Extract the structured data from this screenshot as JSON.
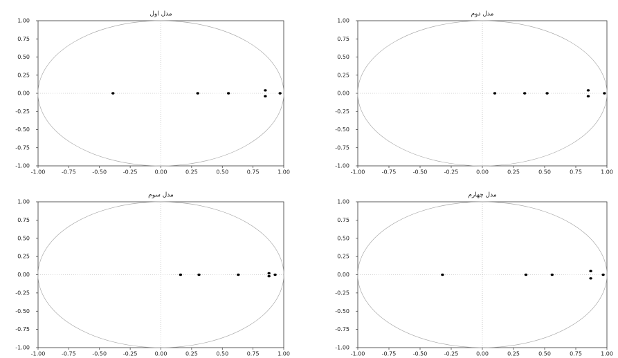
{
  "chart_data": [
    {
      "type": "scatter",
      "title": "مدل اول",
      "color": "#000000",
      "x": [
        -0.39,
        0.3,
        0.55,
        0.85,
        0.85,
        0.97
      ],
      "values": [
        0,
        0,
        0,
        0.04,
        -0.04,
        0
      ],
      "xlim": [
        -1,
        1
      ],
      "ylim": [
        -1,
        1
      ],
      "xticks": [
        {
          "value": -1,
          "label": "-1.00"
        },
        {
          "value": -0.75,
          "label": "-0.75"
        },
        {
          "value": -0.5,
          "label": "-0.50"
        },
        {
          "value": -0.25,
          "label": "-0.25"
        },
        {
          "value": 0,
          "label": "0.00"
        },
        {
          "value": 0.25,
          "label": "0.25"
        },
        {
          "value": 0.5,
          "label": "0.50"
        },
        {
          "value": 0.75,
          "label": "0.75"
        },
        {
          "value": 1,
          "label": "1.00"
        }
      ],
      "yticks": [
        {
          "value": 1,
          "label": "1.00"
        },
        {
          "value": 0.75,
          "label": "0.75"
        },
        {
          "value": 0.5,
          "label": "0.50"
        },
        {
          "value": 0.25,
          "label": "0.25"
        },
        {
          "value": 0,
          "label": "0.00"
        },
        {
          "value": -0.25,
          "label": "-0.25"
        },
        {
          "value": -0.5,
          "label": "-0.50"
        },
        {
          "value": -0.75,
          "label": "-0.75"
        },
        {
          "value": -1,
          "label": "-1.00"
        }
      ]
    },
    {
      "type": "scatter",
      "title": "مدل دوم",
      "color": "#000000",
      "x": [
        0.1,
        0.34,
        0.52,
        0.85,
        0.85,
        0.98
      ],
      "values": [
        0,
        0,
        0,
        0.04,
        -0.04,
        0
      ],
      "xlim": [
        -1,
        1
      ],
      "ylim": [
        -1,
        1
      ],
      "xticks": [
        {
          "value": -1,
          "label": "-1.00"
        },
        {
          "value": -0.75,
          "label": "-0.75"
        },
        {
          "value": -0.5,
          "label": "-0.50"
        },
        {
          "value": -0.25,
          "label": "-0.25"
        },
        {
          "value": 0,
          "label": "0.00"
        },
        {
          "value": 0.25,
          "label": "0.25"
        },
        {
          "value": 0.5,
          "label": "0.50"
        },
        {
          "value": 0.75,
          "label": "0.75"
        },
        {
          "value": 1,
          "label": "1.00"
        }
      ],
      "yticks": [
        {
          "value": 1,
          "label": "1.00"
        },
        {
          "value": 0.75,
          "label": "0.75"
        },
        {
          "value": 0.5,
          "label": "0.50"
        },
        {
          "value": 0.25,
          "label": "0.25"
        },
        {
          "value": 0,
          "label": "0.00"
        },
        {
          "value": -0.25,
          "label": "-0.25"
        },
        {
          "value": -0.5,
          "label": "-0.50"
        },
        {
          "value": -0.75,
          "label": "-0.75"
        },
        {
          "value": -1,
          "label": "-1.00"
        }
      ]
    },
    {
      "type": "scatter",
      "title": "مدل سوم",
      "color": "#000000",
      "x": [
        0.16,
        0.31,
        0.63,
        0.88,
        0.88,
        0.93
      ],
      "values": [
        0,
        0,
        0,
        0.02,
        -0.02,
        0
      ],
      "xlim": [
        -1,
        1
      ],
      "ylim": [
        -1,
        1
      ],
      "xticks": [
        {
          "value": -1,
          "label": "-1.00"
        },
        {
          "value": -0.75,
          "label": "-0.75"
        },
        {
          "value": -0.5,
          "label": "-0.50"
        },
        {
          "value": -0.25,
          "label": "-0.25"
        },
        {
          "value": 0,
          "label": "0.00"
        },
        {
          "value": 0.25,
          "label": "0.25"
        },
        {
          "value": 0.5,
          "label": "0.50"
        },
        {
          "value": 0.75,
          "label": "0.75"
        },
        {
          "value": 1,
          "label": "1.00"
        }
      ],
      "yticks": [
        {
          "value": 1,
          "label": "1.00"
        },
        {
          "value": 0.75,
          "label": "0.75"
        },
        {
          "value": 0.5,
          "label": "0.50"
        },
        {
          "value": 0.25,
          "label": "0.25"
        },
        {
          "value": 0,
          "label": "0.00"
        },
        {
          "value": -0.25,
          "label": "-0.25"
        },
        {
          "value": -0.5,
          "label": "-0.50"
        },
        {
          "value": -0.75,
          "label": "-0.75"
        },
        {
          "value": -1,
          "label": "-1.00"
        }
      ]
    },
    {
      "type": "scatter",
      "title": "مدل چهارم",
      "color": "#000000",
      "x": [
        -0.32,
        0.35,
        0.56,
        0.87,
        0.87,
        0.97
      ],
      "values": [
        0,
        0,
        0,
        0.05,
        -0.05,
        0
      ],
      "xlim": [
        -1,
        1
      ],
      "ylim": [
        -1,
        1
      ],
      "xticks": [
        {
          "value": -1,
          "label": "-1.00"
        },
        {
          "value": -0.75,
          "label": "-0.75"
        },
        {
          "value": -0.5,
          "label": "-0.50"
        },
        {
          "value": -0.25,
          "label": "-0.25"
        },
        {
          "value": 0,
          "label": "0.00"
        },
        {
          "value": 0.25,
          "label": "0.25"
        },
        {
          "value": 0.5,
          "label": "0.50"
        },
        {
          "value": 0.75,
          "label": "0.75"
        },
        {
          "value": 1,
          "label": "1.00"
        }
      ],
      "yticks": [
        {
          "value": 1,
          "label": "1.00"
        },
        {
          "value": 0.75,
          "label": "0.75"
        },
        {
          "value": 0.5,
          "label": "0.50"
        },
        {
          "value": 0.25,
          "label": "0.25"
        },
        {
          "value": 0,
          "label": "0.00"
        },
        {
          "value": -0.25,
          "label": "-0.25"
        },
        {
          "value": -0.5,
          "label": "-0.50"
        },
        {
          "value": -0.75,
          "label": "-0.75"
        },
        {
          "value": -1,
          "label": "-1.00"
        }
      ]
    }
  ]
}
